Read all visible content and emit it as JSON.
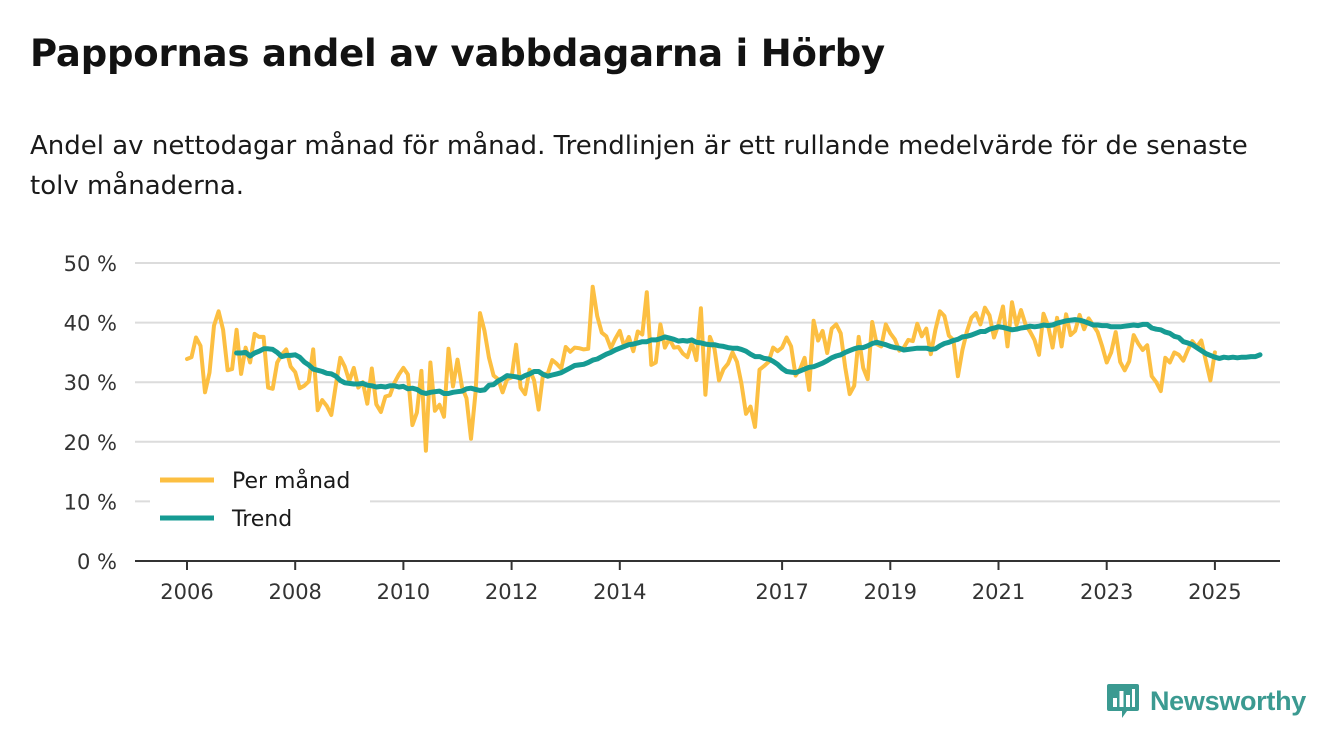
{
  "title": "Pappornas andel av vabbdagarna i Hörby",
  "subtitle": "Andel av nettodagar månad för månad. Trendlinjen är ett rullande medelvärde för de senaste tolv månaderna.",
  "brand": {
    "name": "Newsworthy",
    "icon": "bar-chart-bubble-icon"
  },
  "colors": {
    "monthly": "#fcbf42",
    "trend": "#169b93",
    "grid": "#dcdcdc",
    "axis": "#333333",
    "brand": "#3b9a91"
  },
  "chart_data": {
    "type": "line",
    "title": "Pappornas andel av vabbdagarna i Hörby",
    "xlabel": "",
    "ylabel": "",
    "ylim": [
      0,
      50
    ],
    "xlim": [
      2006.0,
      2026.75
    ],
    "y_ticks": [
      0,
      10,
      20,
      30,
      40,
      50
    ],
    "y_tick_labels": [
      "0 %",
      "10 %",
      "20 %",
      "30 %",
      "40 %",
      "50 %"
    ],
    "x_ticks": [
      2006,
      2008,
      2010,
      2012,
      2014,
      2017,
      2019,
      2021,
      2023,
      2025
    ],
    "x_tick_labels": [
      "2006",
      "2008",
      "2010",
      "2012",
      "2014",
      "2017",
      "2019",
      "2021",
      "2023",
      "2025"
    ],
    "grid": true,
    "legend": {
      "position": "bottom-left",
      "entries": [
        "Per månad",
        "Trend"
      ]
    },
    "series": [
      {
        "name": "Per månad",
        "x_start": 2006.0,
        "step": 0.08333,
        "values": [
          33.9,
          34.2,
          37.5,
          36.1,
          28.3,
          31.6,
          39.5,
          41.9,
          38.8,
          32.0,
          32.2,
          38.8,
          31.4,
          35.8,
          33.3,
          38.1,
          37.6,
          37.6,
          29.1,
          28.9,
          33.3,
          34.6,
          35.5,
          32.6,
          31.7,
          29.0,
          29.4,
          30.1,
          35.5,
          25.3,
          27.0,
          26.0,
          24.5,
          29.5,
          34.1,
          32.6,
          30.2,
          32.4,
          29.1,
          30.0,
          26.4,
          32.3,
          26.3,
          25.0,
          27.6,
          27.8,
          29.9,
          31.3,
          32.4,
          31.3,
          22.8,
          24.9,
          31.9,
          18.5,
          33.3,
          25.2,
          26.2,
          24.2,
          35.6,
          29.3,
          33.8,
          29.2,
          27.3,
          20.5,
          28.2,
          41.6,
          38.6,
          34.1,
          31.1,
          30.5,
          28.3,
          30.5,
          30.8,
          36.3,
          29.1,
          28.0,
          32.1,
          30.3,
          25.4,
          31.4,
          31.4,
          33.7,
          33.1,
          32.3,
          35.9,
          35.1,
          35.8,
          35.7,
          35.5,
          35.6,
          46.0,
          41.1,
          38.3,
          37.7,
          35.7,
          37.3,
          38.6,
          35.9,
          37.6,
          35.2,
          38.5,
          38.0,
          45.1,
          32.9,
          33.3,
          39.7,
          35.8,
          37.3,
          35.8,
          35.9,
          34.8,
          34.2,
          36.6,
          33.7,
          42.4,
          27.9,
          37.6,
          35.6,
          30.3,
          32.2,
          33.1,
          35.0,
          33.4,
          29.7,
          24.7,
          25.9,
          22.5,
          32.1,
          32.7,
          33.4,
          35.8,
          35.2,
          35.8,
          37.5,
          36.0,
          31.1,
          32.2,
          34.1,
          28.7,
          40.3,
          37.0,
          38.6,
          34.9,
          39.0,
          39.7,
          38.2,
          32.5,
          28.0,
          29.4,
          37.6,
          32.4,
          30.5,
          40.1,
          36.4,
          36.0,
          39.7,
          38.2,
          37.2,
          35.3,
          35.8,
          37.1,
          36.9,
          39.8,
          37.7,
          39.0,
          34.7,
          38.8,
          41.9,
          41.1,
          37.8,
          37.1,
          31.0,
          35.4,
          38.5,
          40.8,
          41.6,
          39.7,
          42.5,
          41.2,
          37.5,
          39.7,
          42.7,
          36.0,
          43.4,
          39.6,
          42.1,
          39.7,
          38.5,
          37.1,
          34.6,
          41.5,
          39.5,
          35.8,
          40.8,
          36.0,
          41.4,
          37.9,
          38.6,
          41.3,
          38.9,
          40.7,
          39.6,
          38.4,
          36.0,
          33.3,
          35.0,
          38.4,
          33.4,
          32.0,
          33.5,
          37.9,
          36.5,
          35.4,
          36.2,
          31.0,
          30.0,
          28.5,
          34.1,
          33.3,
          35.0,
          34.6,
          33.6,
          35.4,
          36.9,
          35.9,
          37.0,
          33.6,
          30.3,
          35.0
        ]
      },
      {
        "name": "Trend",
        "x_start": 2006.917,
        "step": 0.08333,
        "values": [
          34.9,
          34.9,
          35.0,
          34.4,
          34.9,
          35.2,
          35.6,
          35.6,
          35.5,
          35.0,
          34.3,
          34.5,
          34.5,
          34.6,
          34.2,
          33.4,
          32.9,
          32.2,
          32.0,
          31.8,
          31.5,
          31.4,
          31.0,
          30.3,
          29.9,
          29.8,
          29.7,
          29.7,
          29.8,
          29.5,
          29.4,
          29.2,
          29.3,
          29.2,
          29.4,
          29.4,
          29.2,
          29.3,
          28.9,
          29.0,
          28.8,
          28.3,
          28.1,
          28.3,
          28.4,
          28.5,
          28.1,
          28.1,
          28.3,
          28.4,
          28.5,
          28.9,
          29.0,
          28.8,
          28.6,
          28.7,
          29.5,
          29.6,
          30.2,
          30.6,
          31.1,
          31.0,
          30.9,
          30.7,
          31.1,
          31.4,
          31.8,
          31.8,
          31.3,
          31.0,
          31.2,
          31.4,
          31.6,
          32.0,
          32.4,
          32.8,
          32.9,
          33.0,
          33.3,
          33.7,
          33.9,
          34.3,
          34.7,
          35.0,
          35.4,
          35.7,
          36.0,
          36.3,
          36.4,
          36.6,
          36.8,
          36.8,
          37.1,
          37.1,
          37.3,
          37.6,
          37.4,
          37.2,
          36.9,
          37.0,
          36.9,
          37.1,
          36.7,
          36.6,
          36.4,
          36.3,
          36.3,
          36.1,
          36.0,
          35.8,
          35.7,
          35.7,
          35.5,
          35.2,
          34.7,
          34.3,
          34.3,
          34.0,
          33.9,
          33.5,
          33.0,
          32.3,
          31.8,
          31.7,
          31.6,
          31.9,
          32.2,
          32.5,
          32.6,
          32.9,
          33.2,
          33.6,
          34.1,
          34.4,
          34.6,
          35.0,
          35.3,
          35.6,
          35.8,
          35.8,
          36.1,
          36.5,
          36.7,
          36.5,
          36.3,
          36.0,
          35.8,
          35.7,
          35.4,
          35.5,
          35.6,
          35.7,
          35.7,
          35.7,
          35.5,
          35.6,
          36.1,
          36.5,
          36.7,
          37.0,
          37.2,
          37.6,
          37.7,
          37.9,
          38.2,
          38.5,
          38.5,
          38.9,
          39.1,
          39.3,
          39.2,
          39.0,
          38.8,
          38.9,
          39.1,
          39.2,
          39.4,
          39.3,
          39.4,
          39.6,
          39.5,
          39.6,
          39.9,
          40.1,
          40.3,
          40.4,
          40.5,
          40.4,
          40.2,
          39.9,
          39.6,
          39.6,
          39.5,
          39.5,
          39.3,
          39.3,
          39.3,
          39.4,
          39.5,
          39.6,
          39.5,
          39.7,
          39.7,
          39.1,
          38.9,
          38.8,
          38.4,
          38.2,
          37.7,
          37.5,
          36.8,
          36.6,
          36.3,
          35.8,
          35.3,
          34.8,
          34.5,
          34.2,
          34.0,
          34.2,
          34.1,
          34.2,
          34.1,
          34.2,
          34.2,
          34.3,
          34.3,
          34.6
        ]
      }
    ]
  }
}
